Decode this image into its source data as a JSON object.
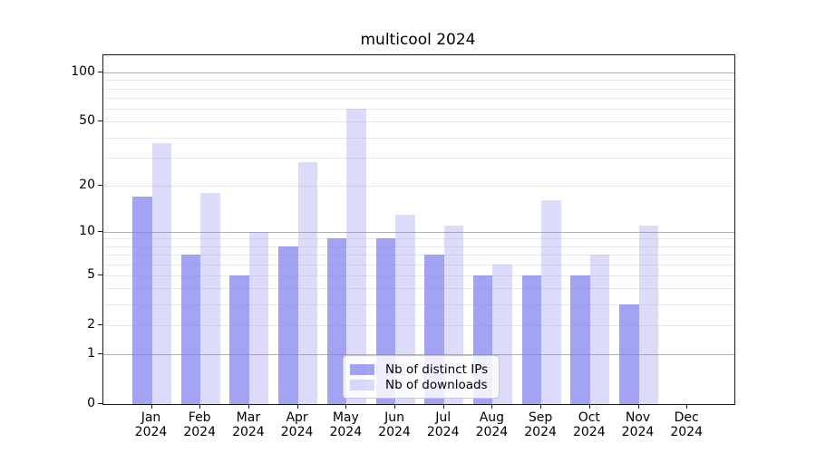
{
  "chart_data": {
    "type": "bar",
    "title": "multicool 2024",
    "categories": [
      "Jan",
      "Feb",
      "Mar",
      "Apr",
      "May",
      "Jun",
      "Jul",
      "Aug",
      "Sep",
      "Oct",
      "Nov",
      "Dec"
    ],
    "category_year": "2024",
    "series": [
      {
        "name": "Nb of distinct IPs",
        "color": "#8080ee",
        "alpha": 0.72,
        "values": [
          17,
          7,
          5,
          8,
          9,
          9,
          7,
          5,
          5,
          5,
          3,
          0
        ]
      },
      {
        "name": "Nb of downloads",
        "color": "#8080ee",
        "alpha": 0.28,
        "values": [
          37,
          18,
          10,
          28,
          60,
          13,
          11,
          6,
          16,
          7,
          11,
          0
        ]
      }
    ],
    "yscale": "log1p",
    "ylim": [
      0,
      127.6
    ],
    "yticks": [
      0,
      1,
      2,
      5,
      10,
      20,
      50,
      100
    ],
    "major_gridlines": [
      1,
      10,
      100
    ],
    "minor_gridlines": [
      2,
      3,
      4,
      5,
      6,
      7,
      8,
      9,
      20,
      30,
      40,
      50,
      60,
      70,
      80,
      90
    ],
    "grid_color_major": "#b0b0b0",
    "grid_color_minor": "#e9e9ec",
    "legend_position": "lower center"
  }
}
